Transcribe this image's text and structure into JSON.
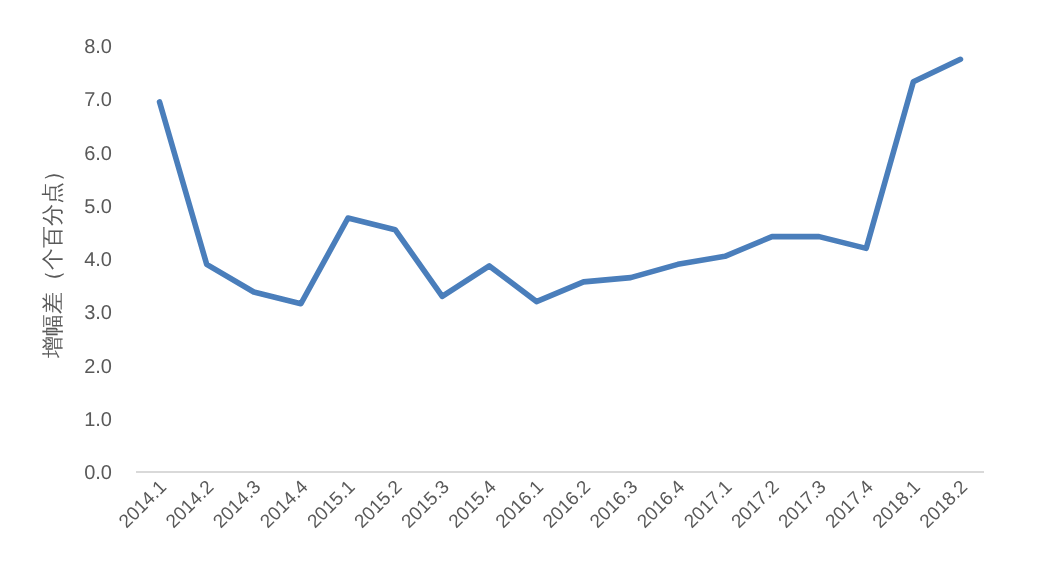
{
  "chart_data": {
    "type": "line",
    "ylabel": "增幅差（个百分点）",
    "categories": [
      "2014.1",
      "2014.2",
      "2014.3",
      "2014.4",
      "2015.1",
      "2015.2",
      "2015.3",
      "2015.4",
      "2016.1",
      "2016.2",
      "2016.3",
      "2016.4",
      "2017.1",
      "2017.2",
      "2017.3",
      "2017.4",
      "2018.1",
      "2018.2"
    ],
    "series": [
      {
        "color": "#4a7ebb",
        "values": [
          6.95,
          3.9,
          3.38,
          3.16,
          4.77,
          4.55,
          3.3,
          3.87,
          3.2,
          3.57,
          3.65,
          3.9,
          4.05,
          4.42,
          4.42,
          4.2,
          7.33,
          7.75
        ]
      }
    ],
    "ylim": [
      0,
      8
    ],
    "yticks": [
      {
        "value": 0,
        "label": "0.0"
      },
      {
        "value": 1,
        "label": "1.0"
      },
      {
        "value": 2,
        "label": "2.0"
      },
      {
        "value": 3,
        "label": "3.0"
      },
      {
        "value": 4,
        "label": "4.0"
      },
      {
        "value": 5,
        "label": "5.0"
      },
      {
        "value": 6,
        "label": "6.0"
      },
      {
        "value": 7,
        "label": "7.0"
      },
      {
        "value": 8,
        "label": "8.0"
      }
    ],
    "grid": false,
    "marker": "none",
    "line_style": "solid"
  }
}
